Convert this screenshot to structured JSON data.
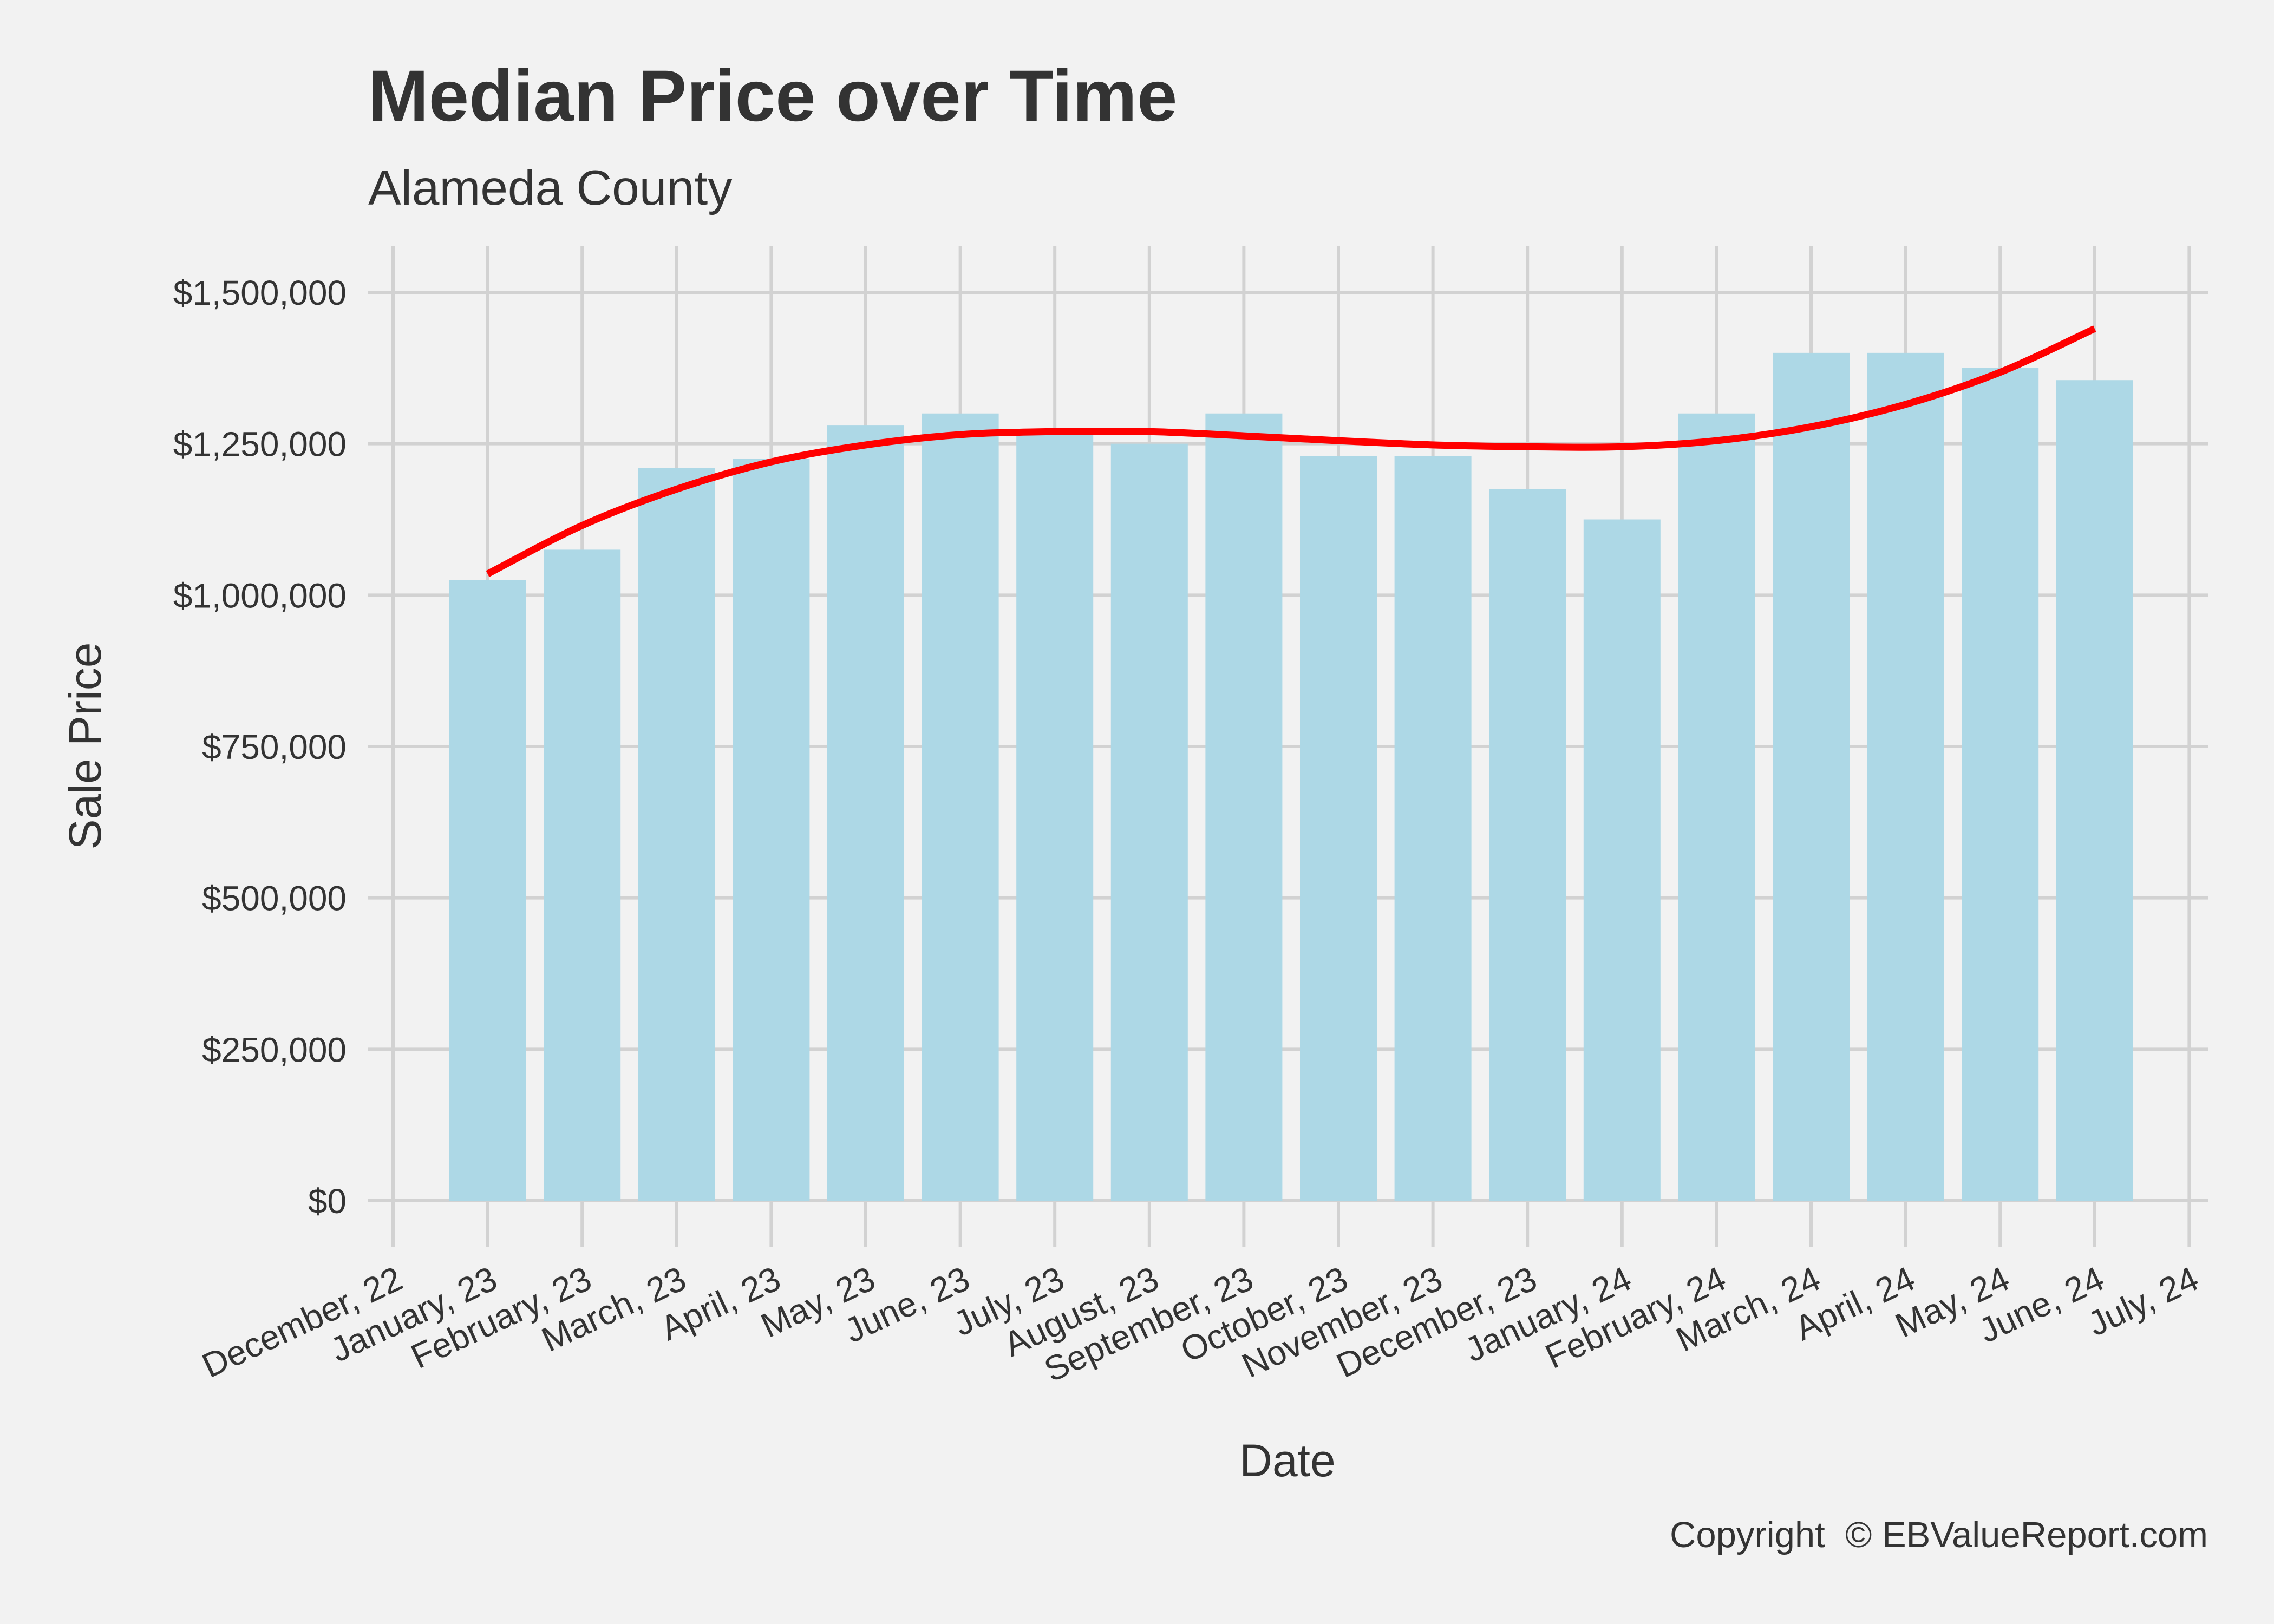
{
  "chart_data": {
    "type": "bar",
    "title": "Median Price over Time",
    "subtitle": "Alameda County",
    "xlabel": "Date",
    "ylabel": "Sale Price",
    "caption": "Copyright  © EBValueReport.com",
    "x_tick_labels": [
      "December, 22",
      "January, 23",
      "February, 23",
      "March, 23",
      "April, 23",
      "May, 23",
      "June, 23",
      "July, 23",
      "August, 23",
      "September, 23",
      "October, 23",
      "November, 23",
      "December, 23",
      "January, 24",
      "February, 24",
      "March, 24",
      "April, 24",
      "May, 24",
      "June, 24",
      "July, 24"
    ],
    "y_tick_labels": [
      "$0",
      "$250,000",
      "$500,000",
      "$750,000",
      "$1,000,000",
      "$1,250,000",
      "$1,500,000"
    ],
    "y_ticks": [
      0,
      250000,
      500000,
      750000,
      1000000,
      1250000,
      1500000
    ],
    "ylim": [
      0,
      1500000
    ],
    "categories": [
      "January, 23",
      "February, 23",
      "March, 23",
      "April, 23",
      "May, 23",
      "June, 23",
      "July, 23",
      "August, 23",
      "September, 23",
      "October, 23",
      "November, 23",
      "December, 23",
      "January, 24",
      "February, 24",
      "March, 24",
      "April, 24",
      "May, 24",
      "June, 24"
    ],
    "values": [
      1025000,
      1075000,
      1210000,
      1225000,
      1280000,
      1300000,
      1270000,
      1250000,
      1300000,
      1230000,
      1230000,
      1175000,
      1125000,
      1300000,
      1400000,
      1400000,
      1375000,
      1355000
    ],
    "trend": {
      "type": "smooth",
      "x": [
        "January, 23",
        "February, 23",
        "March, 23",
        "April, 23",
        "May, 23",
        "June, 23",
        "July, 23",
        "August, 23",
        "September, 23",
        "October, 23",
        "November, 23",
        "December, 23",
        "January, 24",
        "February, 24",
        "March, 24",
        "April, 24",
        "May, 24",
        "June, 24"
      ],
      "values": [
        1035000,
        1115000,
        1175000,
        1220000,
        1248000,
        1265000,
        1270000,
        1270000,
        1263000,
        1255000,
        1248000,
        1245000,
        1245000,
        1255000,
        1278000,
        1315000,
        1368000,
        1440000
      ]
    },
    "grid": true,
    "legend": "none",
    "colors": {
      "bar": "#add8e6",
      "trend": "#ff0000",
      "background": "#f2f2f2",
      "grid": "#d2d2d2",
      "text": "#333333"
    }
  }
}
